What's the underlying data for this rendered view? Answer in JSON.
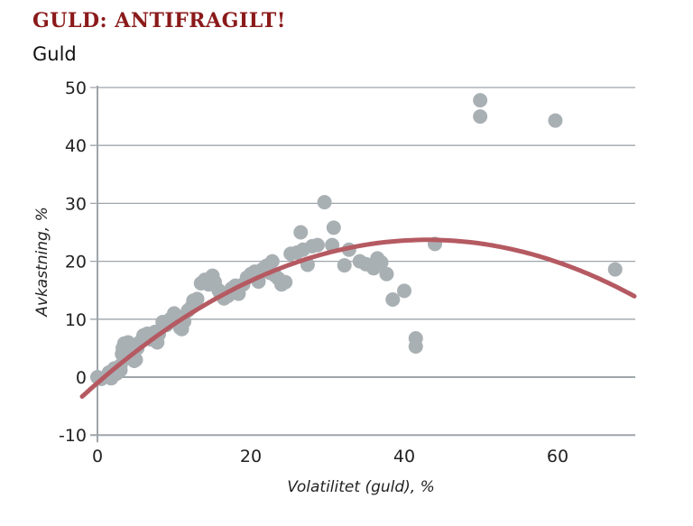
{
  "chart_data": {
    "type": "scatter",
    "title": "GULD: ANTIFRAGILT!",
    "subtitle": "Guld",
    "xlabel": "Volatilitet (guld), %",
    "ylabel": "Avkastning, %",
    "xlim": [
      -2,
      70
    ],
    "ylim": [
      -10,
      50
    ],
    "xticks": [
      "0",
      "20",
      "40",
      "60"
    ],
    "xtick_values": [
      0,
      20,
      40,
      60
    ],
    "yticks": [
      "50",
      "40",
      "30",
      "20",
      "10",
      "0",
      "-10"
    ],
    "ytick_values": [
      50,
      40,
      30,
      20,
      10,
      0,
      -10
    ],
    "grid": "horizontal",
    "colors": {
      "points": "#a9b0b4",
      "trend": "#b55a62",
      "title": "#8b1a1a",
      "grid": "#9ea5ab"
    },
    "trend": {
      "type": "quadratic",
      "coefficients": [
        -1,
        1.149,
        -0.01336
      ],
      "x_range": [
        -2,
        70
      ]
    },
    "points": [
      [
        0,
        0
      ],
      [
        0.5,
        -0.3
      ],
      [
        1.5,
        0.8
      ],
      [
        1.8,
        -0.2
      ],
      [
        2.2,
        1.5
      ],
      [
        2.5,
        0.6
      ],
      [
        3,
        1.2
      ],
      [
        3,
        2
      ],
      [
        3.2,
        4
      ],
      [
        3.3,
        5
      ],
      [
        3.5,
        5.8
      ],
      [
        3.6,
        3.2
      ],
      [
        4,
        6
      ],
      [
        4.2,
        4.5
      ],
      [
        4.5,
        3.5
      ],
      [
        4.8,
        2.8
      ],
      [
        5,
        3
      ],
      [
        5.2,
        5
      ],
      [
        5.5,
        6
      ],
      [
        6,
        7.2
      ],
      [
        6.5,
        7.5
      ],
      [
        7,
        6.5
      ],
      [
        7.5,
        7.8
      ],
      [
        7.8,
        6
      ],
      [
        8,
        7.4
      ],
      [
        8.5,
        9.5
      ],
      [
        9,
        9
      ],
      [
        9.5,
        10
      ],
      [
        10,
        11
      ],
      [
        10.3,
        10.5
      ],
      [
        10.8,
        8.5
      ],
      [
        11,
        8.3
      ],
      [
        11.3,
        9.6
      ],
      [
        11.8,
        11.5
      ],
      [
        12.2,
        12
      ],
      [
        12.5,
        13.2
      ],
      [
        13,
        13.5
      ],
      [
        13.5,
        16.2
      ],
      [
        14,
        16.8
      ],
      [
        14.5,
        16
      ],
      [
        15,
        17.5
      ],
      [
        15.3,
        16.4
      ],
      [
        15.8,
        15
      ],
      [
        16,
        14.5
      ],
      [
        16.5,
        13.6
      ],
      [
        17,
        14
      ],
      [
        17.5,
        15.3
      ],
      [
        18,
        15.8
      ],
      [
        18.4,
        14.4
      ],
      [
        19,
        16
      ],
      [
        19.5,
        17.2
      ],
      [
        20,
        17.8
      ],
      [
        20.5,
        18.2
      ],
      [
        21,
        16.5
      ],
      [
        21.5,
        18.6
      ],
      [
        22,
        19.2
      ],
      [
        22.5,
        18
      ],
      [
        22.8,
        20
      ],
      [
        23.2,
        17.5
      ],
      [
        23.6,
        17
      ],
      [
        24,
        16
      ],
      [
        24.5,
        16.4
      ],
      [
        25.2,
        21.3
      ],
      [
        26,
        21.5
      ],
      [
        26.5,
        25
      ],
      [
        26.8,
        22
      ],
      [
        27.4,
        19.4
      ],
      [
        28,
        22.6
      ],
      [
        28.7,
        22.8
      ],
      [
        29.6,
        30.2
      ],
      [
        30.6,
        22.8
      ],
      [
        30.8,
        25.8
      ],
      [
        32.2,
        19.3
      ],
      [
        32.8,
        22
      ],
      [
        34.2,
        20
      ],
      [
        35,
        19.5
      ],
      [
        36,
        18.8
      ],
      [
        36.5,
        20.5
      ],
      [
        37,
        19.8
      ],
      [
        37.7,
        17.8
      ],
      [
        38.5,
        13.4
      ],
      [
        40,
        14.9
      ],
      [
        41.5,
        6.7
      ],
      [
        41.5,
        5.3
      ],
      [
        44,
        23
      ],
      [
        49.9,
        47.8
      ],
      [
        49.9,
        45
      ],
      [
        59.7,
        44.3
      ],
      [
        67.5,
        18.6
      ]
    ]
  }
}
